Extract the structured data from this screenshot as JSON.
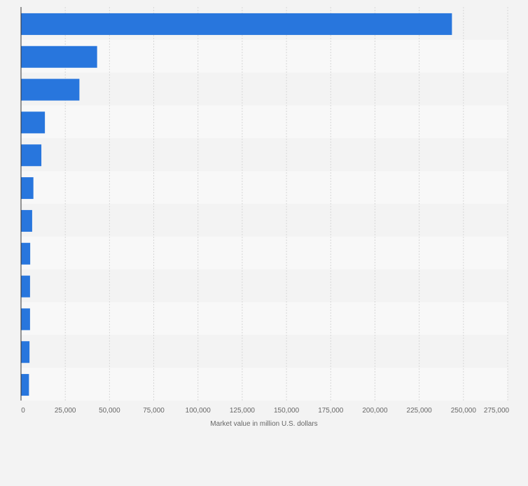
{
  "chart_data": {
    "type": "bar",
    "orientation": "horizontal",
    "values": [
      243500,
      43000,
      33000,
      13500,
      11500,
      7000,
      6300,
      5200,
      5100,
      5100,
      4800,
      4500
    ],
    "xlabel": "Market value in million U.S. dollars",
    "xticks": [
      "0",
      "25,000",
      "50,000",
      "75,000",
      "100,000",
      "125,000",
      "150,000",
      "175,000",
      "200,000",
      "225,000",
      "250,000",
      "275,000"
    ],
    "xlim": [
      0,
      275000
    ],
    "grid": true,
    "colors": {
      "bar": "#2876dd",
      "page_bg": "#f3f3f3",
      "row_alt_a": "#f3f3f3",
      "row_alt_b": "#f8f8f8",
      "grid": "#d7d7d7",
      "axis": "#333333",
      "tick_text": "#666666"
    }
  }
}
